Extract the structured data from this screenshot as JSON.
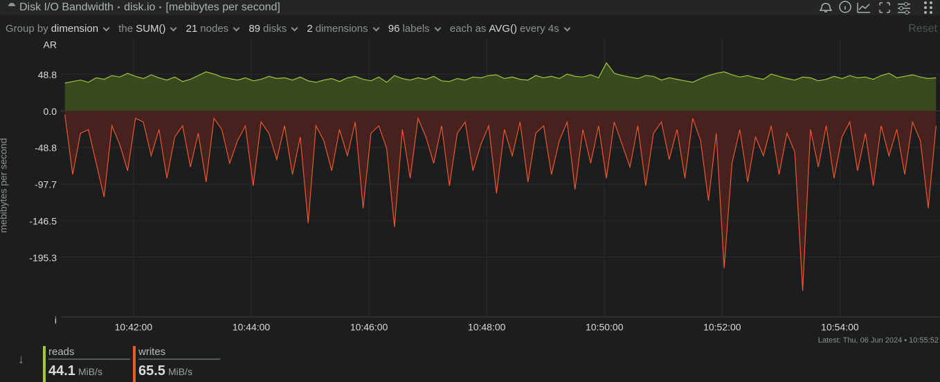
{
  "header": {
    "title": "Disk I/O Bandwidth",
    "context": "disk.io",
    "units": "[mebibytes per second]"
  },
  "toolbar": {
    "group_by_label": "Group by",
    "group_by_value": "dimension",
    "aggregate_label": "the",
    "aggregate_value": "SUM()",
    "nodes_count": "21",
    "nodes_label": "nodes",
    "disks_count": "89",
    "disks_label": "disks",
    "dimensions_count": "2",
    "dimensions_label": "dimensions",
    "labels_count": "96",
    "labels_label": "labels",
    "time_agg_label": "each as",
    "time_agg_value": "AVG()",
    "time_agg_every": "every 4s",
    "reset": "Reset"
  },
  "axis_top_label": "AR",
  "axis_bottom_label": "i",
  "latest": "Latest: Thu, 06 Jun 2024 • 10:55:52",
  "legend": [
    {
      "name": "reads",
      "value": 44.1,
      "unit": "MiB/s"
    },
    {
      "name": "writes",
      "value": 65.5,
      "unit": "MiB/s"
    }
  ],
  "chart_data": {
    "type": "area",
    "y_label": "mebibytes per second",
    "x": [
      "10:40:50",
      "10:40:58",
      "10:41:06",
      "10:41:14",
      "10:41:22",
      "10:41:30",
      "10:41:38",
      "10:41:46",
      "10:41:54",
      "10:42:02",
      "10:42:10",
      "10:42:18",
      "10:42:26",
      "10:42:34",
      "10:42:42",
      "10:42:50",
      "10:42:58",
      "10:43:06",
      "10:43:14",
      "10:43:22",
      "10:43:30",
      "10:43:38",
      "10:43:46",
      "10:43:54",
      "10:44:02",
      "10:44:10",
      "10:44:18",
      "10:44:26",
      "10:44:34",
      "10:44:42",
      "10:44:50",
      "10:44:58",
      "10:45:06",
      "10:45:14",
      "10:45:22",
      "10:45:30",
      "10:45:38",
      "10:45:46",
      "10:45:54",
      "10:46:02",
      "10:46:10",
      "10:46:18",
      "10:46:26",
      "10:46:34",
      "10:46:42",
      "10:46:50",
      "10:46:58",
      "10:47:06",
      "10:47:14",
      "10:47:22",
      "10:47:30",
      "10:47:38",
      "10:47:46",
      "10:47:54",
      "10:48:02",
      "10:48:10",
      "10:48:18",
      "10:48:26",
      "10:48:34",
      "10:48:42",
      "10:48:50",
      "10:48:58",
      "10:49:06",
      "10:49:14",
      "10:49:22",
      "10:49:30",
      "10:49:38",
      "10:49:46",
      "10:49:54",
      "10:50:02",
      "10:50:10",
      "10:50:18",
      "10:50:26",
      "10:50:34",
      "10:50:42",
      "10:50:50",
      "10:50:58",
      "10:51:06",
      "10:51:14",
      "10:51:22",
      "10:51:30",
      "10:51:38",
      "10:51:46",
      "10:51:54",
      "10:52:02",
      "10:52:10",
      "10:52:18",
      "10:52:26",
      "10:52:34",
      "10:52:42",
      "10:52:50",
      "10:52:58",
      "10:53:06",
      "10:53:14",
      "10:53:22",
      "10:53:30",
      "10:53:38",
      "10:53:46",
      "10:53:54",
      "10:54:02",
      "10:54:10",
      "10:54:18",
      "10:54:26",
      "10:54:34",
      "10:54:42",
      "10:54:50",
      "10:54:58",
      "10:55:06",
      "10:55:14",
      "10:55:22",
      "10:55:30",
      "10:55:38"
    ],
    "series": [
      {
        "name": "reads",
        "color": "#a4c639",
        "fill": "#3a4a20",
        "values": [
          37,
          39,
          41,
          38,
          44,
          42,
          47,
          45,
          50,
          46,
          43,
          48,
          44,
          41,
          45,
          39,
          42,
          47,
          52,
          49,
          45,
          43,
          41,
          44,
          40,
          42,
          46,
          43,
          44,
          41,
          45,
          40,
          38,
          41,
          43,
          39,
          44,
          46,
          42,
          40,
          45,
          38,
          47,
          43,
          41,
          44,
          42,
          46,
          40,
          39,
          43,
          41,
          45,
          44,
          47,
          48,
          43,
          45,
          42,
          41,
          47,
          44,
          46,
          43,
          49,
          46,
          45,
          48,
          44,
          64,
          50,
          47,
          45,
          43,
          47,
          46,
          41,
          44,
          42,
          40,
          38,
          43,
          47,
          50,
          52,
          48,
          45,
          47,
          44,
          42,
          49,
          46,
          43,
          41,
          45,
          44,
          40,
          42,
          46,
          43,
          47,
          44,
          45,
          42,
          47,
          50,
          44,
          46,
          48,
          45,
          43,
          44
        ]
      },
      {
        "name": "writes",
        "color": "#f0562c",
        "fill": "#45221e",
        "values": [
          -5,
          -85,
          -30,
          -25,
          -70,
          -115,
          -20,
          -45,
          -80,
          -10,
          -15,
          -60,
          -25,
          -90,
          -35,
          -20,
          -75,
          -30,
          -95,
          -10,
          -25,
          -70,
          -40,
          -20,
          -100,
          -15,
          -30,
          -65,
          -20,
          -85,
          -35,
          -150,
          -20,
          -40,
          -80,
          -25,
          -60,
          -15,
          -130,
          -30,
          -20,
          -50,
          -155,
          -25,
          -90,
          -10,
          -35,
          -70,
          -20,
          -100,
          -30,
          -15,
          -80,
          -45,
          -20,
          -110,
          -25,
          -60,
          -15,
          -95,
          -30,
          -20,
          -85,
          -40,
          -15,
          -105,
          -25,
          -70,
          -20,
          -90,
          -15,
          -45,
          -75,
          -20,
          -100,
          -30,
          -15,
          -65,
          -25,
          -90,
          -10,
          -40,
          -120,
          -30,
          -210,
          -70,
          -25,
          -95,
          -35,
          -60,
          -20,
          -85,
          -30,
          -55,
          -240,
          -25,
          -75,
          -20,
          -90,
          -35,
          -15,
          -80,
          -30,
          -100,
          -20,
          -60,
          -25,
          -85,
          -15,
          -40,
          -130,
          -20
        ]
      }
    ],
    "xlim": [
      "10:40:46",
      "10:55:42"
    ],
    "xticks": [
      "10:42:00",
      "10:44:00",
      "10:46:00",
      "10:48:00",
      "10:50:00",
      "10:52:00",
      "10:54:00"
    ],
    "ylim": [
      -275,
      97
    ],
    "yticks": [
      48.8,
      {
        "value": 0,
        "label": "0.0"
      },
      -48.8,
      -97.7,
      -146.5,
      -195.3
    ],
    "grid": true
  }
}
